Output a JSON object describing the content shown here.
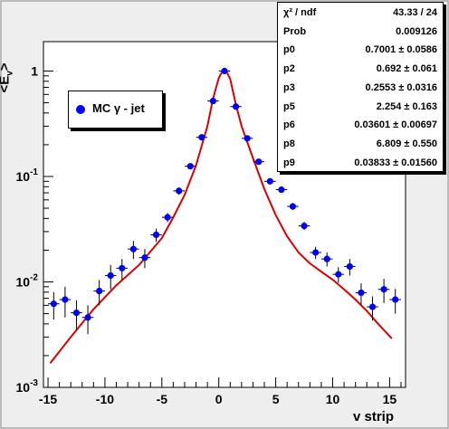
{
  "chart_data": {
    "type": "scatter",
    "xlabel": "v strip",
    "ylabel": "<E",
    "ylabel_sub": "v",
    "ylabel_end": ">",
    "xlim": [
      -15.4,
      16.4
    ],
    "ylim": [
      0.001,
      1.9
    ],
    "yscale": "log",
    "grid": false,
    "x_ticks": [
      -15,
      -10,
      -5,
      0,
      5,
      10,
      15
    ],
    "x_tick_labels": [
      "-15",
      "-10",
      "-5",
      "0",
      "5",
      "10",
      "15"
    ],
    "y_ticks": [
      0.001,
      0.01,
      0.1,
      1
    ],
    "y_tick_labels": [
      {
        "base": "10",
        "exp": "-3"
      },
      {
        "base": "10",
        "exp": "-2"
      },
      {
        "base": "10",
        "exp": "-1"
      },
      {
        "base": "1",
        "exp": ""
      }
    ],
    "series": [
      {
        "name": "MC γ - jet",
        "marker_color": "#0000ff",
        "x": [
          -14.5,
          -13.5,
          -12.5,
          -11.5,
          -10.5,
          -9.5,
          -8.5,
          -7.5,
          -6.5,
          -5.5,
          -4.5,
          -3.5,
          -2.5,
          -1.5,
          -0.5,
          0.5,
          1.5,
          2.5,
          3.5,
          4.5,
          5.5,
          6.5,
          7.5,
          8.5,
          9.5,
          10.5,
          11.5,
          12.5,
          13.5,
          14.5,
          15.5
        ],
        "y": [
          0.0062,
          0.0068,
          0.0051,
          0.0046,
          0.0082,
          0.0115,
          0.0135,
          0.0205,
          0.017,
          0.028,
          0.041,
          0.073,
          0.125,
          0.235,
          0.52,
          1.0,
          0.46,
          0.23,
          0.138,
          0.09,
          0.075,
          0.052,
          0.034,
          0.019,
          0.0165,
          0.0118,
          0.014,
          0.0079,
          0.0058,
          0.0085,
          0.0068
        ],
        "y_err": [
          0.0018,
          0.0022,
          0.0016,
          0.0014,
          0.0022,
          0.003,
          0.003,
          0.004,
          0.0035,
          0.004,
          0.004,
          0.006,
          0.008,
          0.012,
          0.02,
          0.03,
          0.02,
          0.012,
          0.008,
          0.006,
          0.005,
          0.004,
          0.003,
          0.0025,
          0.0025,
          0.002,
          0.0025,
          0.0018,
          0.0015,
          0.0022,
          0.0018
        ]
      }
    ],
    "fit": {
      "color": "#dd0000",
      "x": [
        -14.8,
        -13,
        -11,
        -9,
        -7,
        -5,
        -4,
        -3,
        -2,
        -1,
        -0.5,
        0,
        0.3,
        0.5,
        0.7,
        1,
        1.5,
        2,
        3,
        4,
        5,
        6,
        7,
        8,
        9,
        10,
        11,
        12,
        13,
        14,
        15.2
      ],
      "y": [
        0.0017,
        0.003,
        0.0055,
        0.0093,
        0.0145,
        0.026,
        0.041,
        0.067,
        0.128,
        0.3,
        0.55,
        0.86,
        0.99,
        1.01,
        0.98,
        0.84,
        0.48,
        0.3,
        0.15,
        0.076,
        0.043,
        0.027,
        0.019,
        0.015,
        0.0125,
        0.0105,
        0.0085,
        0.0068,
        0.0053,
        0.004,
        0.0029
      ]
    },
    "legend": {
      "position": "top-left",
      "label": "MC γ - jet"
    },
    "stats": [
      {
        "key": "χ² / ndf",
        "value": "43.33 / 24"
      },
      {
        "key": "Prob",
        "value": "0.009126"
      },
      {
        "key": "p0",
        "value": "0.7001 ± 0.0586"
      },
      {
        "key": "p2",
        "value": "0.692 ± 0.061"
      },
      {
        "key": "p3",
        "value": "0.2553 ± 0.0316"
      },
      {
        "key": "p5",
        "value": "2.254 ± 0.163"
      },
      {
        "key": "p6",
        "value": "0.03601 ± 0.00697"
      },
      {
        "key": "p8",
        "value": "6.809 ± 0.550"
      },
      {
        "key": "p9",
        "value": "0.03833 ± 0.01560"
      }
    ]
  }
}
